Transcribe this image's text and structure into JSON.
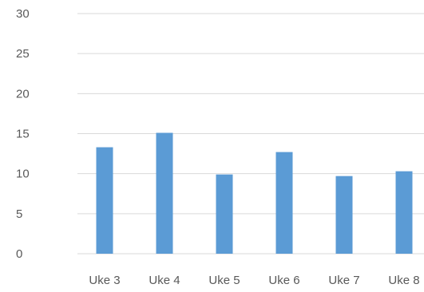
{
  "chart_data": {
    "type": "bar",
    "categories": [
      "Uke 3",
      "Uke 4",
      "Uke 5",
      "Uke 6",
      "Uke 7",
      "Uke 8"
    ],
    "series": [
      {
        "values": [
          13.3,
          15.1,
          9.9,
          12.7,
          9.7,
          10.3
        ]
      }
    ],
    "ylim": [
      0,
      30
    ],
    "yticks": [
      0,
      5,
      10,
      15,
      20,
      25,
      30
    ],
    "title": "",
    "xlabel": "",
    "ylabel": "",
    "grid": true,
    "legend": "none",
    "colors": {
      "bar": "#5b9bd5",
      "grid": "#d9d9d9",
      "text": "#595959"
    }
  }
}
